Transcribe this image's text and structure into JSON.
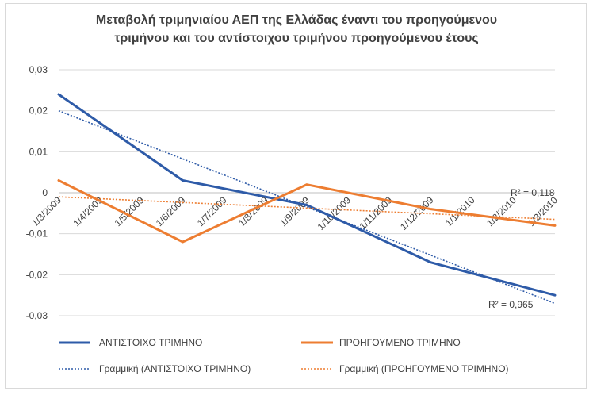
{
  "chart_data": {
    "type": "line",
    "title_line1": "Μεταβολή τριμηνιαίου ΑΕΠ της Ελλάδας έναντι του προηγούμενου",
    "title_line2": "τριμήνου και του αντίστοιχου τριμήνου προηγούμενου έτους",
    "categories": [
      "1/3/2009",
      "1/4/2009",
      "1/5/2009",
      "1/6/2009",
      "1/7/2009",
      "1/8/2009",
      "1/9/2009",
      "1/10/2009",
      "1/11/2009",
      "1/12/2009",
      "1/1/2010",
      "1/2/2010",
      "1/3/2010"
    ],
    "y_ticks": [
      "0,03",
      "0,02",
      "0,01",
      "0",
      "-0,01",
      "-0,02",
      "-0,03"
    ],
    "ylim": [
      -0.03,
      0.03
    ],
    "series": [
      {
        "name": "ΑΝΤΙΣΤΟΙΧΟ ΤΡΙΜΗΝΟ",
        "color": "#2e5ba8",
        "points": [
          [
            0,
            0.024
          ],
          [
            3,
            0.003
          ],
          [
            6,
            -0.003
          ],
          [
            9,
            -0.017
          ],
          [
            12,
            -0.025
          ]
        ],
        "trend": [
          0.02,
          -0.027
        ],
        "trend_name": "Γραμμική (ΑΝΤΙΣΤΟΙΧΟ ΤΡΙΜΗΝΟ)",
        "r2": "R² = 0,965"
      },
      {
        "name": "ΠΡΟΗΓΟΥΜΕΝΟ ΤΡΙΜΗΝΟ",
        "color": "#ed7d31",
        "points": [
          [
            0,
            0.003
          ],
          [
            3,
            -0.012
          ],
          [
            6,
            0.002
          ],
          [
            9,
            -0.004
          ],
          [
            12,
            -0.008
          ]
        ],
        "trend": [
          -0.001,
          -0.0065
        ],
        "trend_name": "Γραμμική (ΠΡΟΗΓΟΥΜΕΝΟ ΤΡΙΜΗΝΟ)",
        "r2": "R² = 0,118"
      }
    ],
    "grid": true,
    "legend": "bottom"
  }
}
